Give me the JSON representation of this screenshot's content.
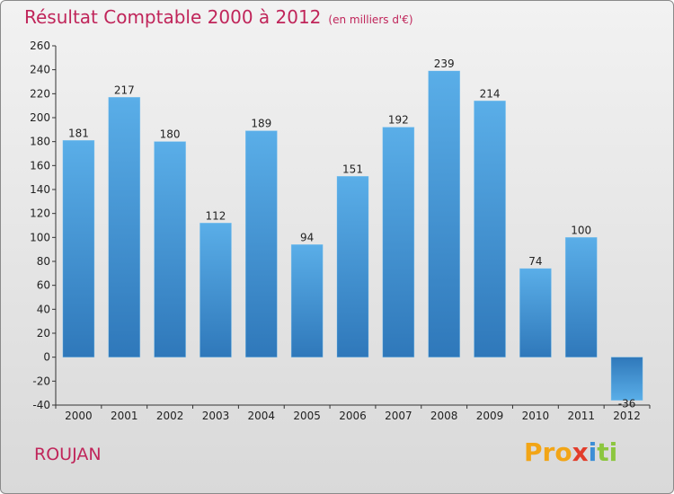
{
  "header": {
    "title": "Résultat Comptable 2000 à 2012",
    "unit": "(en milliers d'€)"
  },
  "footer": {
    "city": "ROUJAN",
    "logo": [
      "Pro",
      "x",
      "i",
      "ti"
    ]
  },
  "colors": {
    "title": "#c0255a",
    "bar_top": "#5aaee8",
    "bar_bottom": "#2f78ba",
    "neg_bar": "#2f78ba"
  },
  "chart_data": {
    "type": "bar",
    "title": "Résultat Comptable 2000 à 2012",
    "ylabel": "en milliers d'€",
    "xlabel": "",
    "categories": [
      "2000",
      "2001",
      "2002",
      "2003",
      "2004",
      "2005",
      "2006",
      "2007",
      "2008",
      "2009",
      "2010",
      "2011",
      "2012"
    ],
    "values": [
      181,
      217,
      180,
      112,
      189,
      94,
      151,
      192,
      239,
      214,
      74,
      100,
      -36
    ],
    "ylim": [
      -40,
      260
    ],
    "yticks": [
      -40,
      -20,
      0,
      20,
      40,
      60,
      80,
      100,
      120,
      140,
      160,
      180,
      200,
      220,
      240,
      260
    ],
    "grid": false
  }
}
